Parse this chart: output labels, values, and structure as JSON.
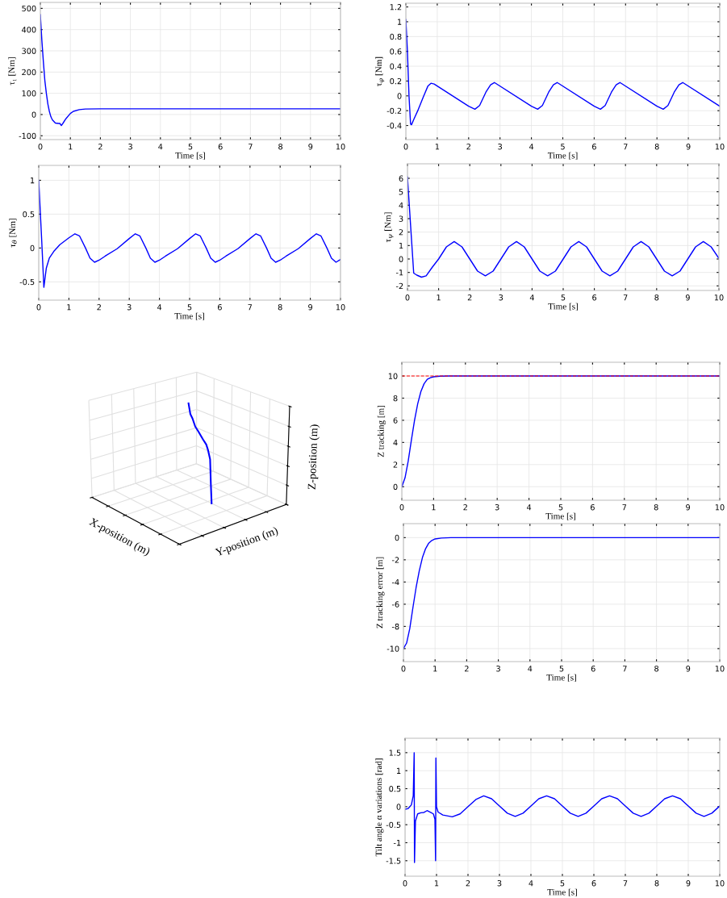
{
  "chart_data": [
    {
      "type": "line",
      "xlabel": "Time [s]",
      "ylabel": "τ₁ [Nm]",
      "xlim": [
        0,
        10
      ],
      "xticks": [
        0,
        1,
        2,
        3,
        4,
        5,
        6,
        7,
        8,
        9,
        10
      ],
      "ylim": [
        -118,
        528
      ],
      "yticks": [
        -100,
        0,
        100,
        200,
        300,
        400,
        500
      ],
      "grid": true,
      "series": [
        {
          "color": "#0000ff",
          "x": [
            0,
            0.05,
            0.1,
            0.15,
            0.2,
            0.25,
            0.3,
            0.35,
            0.4,
            0.5,
            0.6,
            0.65,
            0.7,
            0.75,
            0.85,
            1.0,
            1.1,
            1.3,
            1.5,
            2,
            10
          ],
          "values": [
            470,
            350,
            250,
            160,
            100,
            50,
            15,
            -10,
            -25,
            -40,
            -42,
            -42,
            -52,
            -42,
            -20,
            5,
            15,
            23,
            26,
            27,
            27
          ]
        }
      ]
    },
    {
      "type": "line",
      "xlabel": "Time [s]",
      "ylabel": "τ$_{φ}$ [Nm]",
      "xlim": [
        0,
        10
      ],
      "xticks": [
        0,
        1,
        2,
        3,
        4,
        5,
        6,
        7,
        8,
        9,
        10
      ],
      "ylim": [
        -0.59,
        1.25
      ],
      "yticks": [
        -0.4,
        -0.2,
        0,
        0.2,
        0.4,
        0.6,
        0.8,
        1,
        1.2
      ],
      "grid": true,
      "series": [
        {
          "color": "#0000ff",
          "x": [
            0,
            0.05,
            0.1,
            0.15,
            0.18,
            0.25,
            0.4,
            0.55,
            0.7,
            0.8,
            0.9,
            2.0,
            2.2,
            2.35,
            2.55,
            2.7,
            2.82,
            4.0,
            4.2,
            4.35,
            4.55,
            4.7,
            4.82,
            6.0,
            6.2,
            6.35,
            6.55,
            6.7,
            6.82,
            8.0,
            8.2,
            8.35,
            8.55,
            8.7,
            8.82,
            10
          ],
          "values": [
            1.03,
            0.6,
            0.0,
            -0.38,
            -0.39,
            -0.32,
            -0.18,
            -0.02,
            0.13,
            0.17,
            0.16,
            -0.14,
            -0.18,
            -0.13,
            0.05,
            0.15,
            0.18,
            -0.14,
            -0.18,
            -0.13,
            0.05,
            0.15,
            0.18,
            -0.14,
            -0.18,
            -0.13,
            0.05,
            0.15,
            0.18,
            -0.14,
            -0.18,
            -0.13,
            0.05,
            0.15,
            0.18,
            -0.14
          ]
        }
      ]
    },
    {
      "type": "line",
      "xlabel": "Time [s]",
      "ylabel": "τ$_{θ}$ [Nm]",
      "xlim": [
        0,
        10
      ],
      "xticks": [
        0,
        1,
        2,
        3,
        4,
        5,
        6,
        7,
        8,
        9,
        10
      ],
      "ylim": [
        -0.77,
        1.22
      ],
      "yticks": [
        -0.5,
        0,
        0.5,
        1
      ],
      "grid": true,
      "series": [
        {
          "color": "#0000ff",
          "x": [
            0,
            0.1,
            0.17,
            0.25,
            0.35,
            0.5,
            0.7,
            1.0,
            1.2,
            1.35,
            1.55,
            1.7,
            1.85,
            2.0,
            2.2,
            2.6,
            3.0,
            3.2,
            3.35,
            3.55,
            3.7,
            3.85,
            4.0,
            4.2,
            4.6,
            5.0,
            5.2,
            5.35,
            5.55,
            5.7,
            5.85,
            6.0,
            6.2,
            6.6,
            7.0,
            7.2,
            7.35,
            7.55,
            7.7,
            7.85,
            8.0,
            8.2,
            8.6,
            9.0,
            9.2,
            9.35,
            9.55,
            9.7,
            9.85,
            10
          ],
          "values": [
            1.0,
            0.1,
            -0.58,
            -0.3,
            -0.15,
            -0.05,
            0.05,
            0.15,
            0.21,
            0.18,
            0.0,
            -0.15,
            -0.21,
            -0.18,
            -0.12,
            -0.01,
            0.14,
            0.21,
            0.18,
            0.0,
            -0.15,
            -0.21,
            -0.18,
            -0.12,
            -0.01,
            0.14,
            0.21,
            0.18,
            0.0,
            -0.15,
            -0.21,
            -0.18,
            -0.12,
            -0.01,
            0.14,
            0.21,
            0.18,
            0.0,
            -0.15,
            -0.21,
            -0.18,
            -0.12,
            -0.01,
            0.14,
            0.21,
            0.18,
            0.0,
            -0.15,
            -0.21,
            -0.17
          ]
        }
      ]
    },
    {
      "type": "line",
      "xlabel": "Time [s]",
      "ylabel": "τ$_{ψ}$ [Nm]",
      "xlim": [
        0,
        10
      ],
      "xticks": [
        0,
        1,
        2,
        3,
        4,
        5,
        6,
        7,
        8,
        9,
        10
      ],
      "ylim": [
        -2.34,
        7.08
      ],
      "yticks": [
        -2,
        -1,
        0,
        1,
        2,
        3,
        4,
        5,
        6
      ],
      "grid": true,
      "series": [
        {
          "color": "#0000ff",
          "x": [
            0,
            0.1,
            0.2,
            0.3,
            0.45,
            0.6,
            0.8,
            1.0,
            1.25,
            1.5,
            1.75,
            2.0,
            2.25,
            2.5,
            2.75,
            3.0,
            3.25,
            3.5,
            3.75,
            4.0,
            4.25,
            4.5,
            4.75,
            5.0,
            5.25,
            5.5,
            5.75,
            6.0,
            6.25,
            6.5,
            6.75,
            7.0,
            7.25,
            7.5,
            7.75,
            8.0,
            8.25,
            8.5,
            8.75,
            9.0,
            9.25,
            9.5,
            9.75,
            10
          ],
          "values": [
            6.1,
            2.5,
            -1.05,
            -1.2,
            -1.35,
            -1.25,
            -0.6,
            0.0,
            0.9,
            1.3,
            0.9,
            0,
            -0.9,
            -1.25,
            -0.9,
            0,
            0.9,
            1.3,
            0.9,
            0,
            -0.9,
            -1.25,
            -0.9,
            0,
            0.9,
            1.3,
            0.9,
            0,
            -0.9,
            -1.25,
            -0.9,
            0,
            0.9,
            1.3,
            0.9,
            0,
            -0.9,
            -1.25,
            -0.9,
            0,
            0.9,
            1.3,
            0.9,
            0.05
          ]
        }
      ]
    },
    {
      "type": "other",
      "xlabel": "X-position (m)",
      "ylabel": "Z-position (m)",
      "annotations": [
        "Y-position (m)"
      ]
    },
    {
      "type": "line",
      "xlabel": "Time [s]",
      "ylabel": "Z tracking [m]",
      "xlim": [
        0,
        10
      ],
      "xticks": [
        0,
        1,
        2,
        3,
        4,
        5,
        6,
        7,
        8,
        9,
        10
      ],
      "ylim": [
        -1.22,
        11.24
      ],
      "yticks": [
        0,
        2,
        4,
        6,
        8,
        10
      ],
      "grid": true,
      "ref_lines": [
        {
          "axis": "y",
          "value": 10,
          "color": "#ff0000",
          "line_style": "dashed"
        }
      ],
      "series": [
        {
          "color": "#0000ff",
          "x": [
            0,
            0.1,
            0.2,
            0.3,
            0.4,
            0.5,
            0.6,
            0.7,
            0.8,
            0.9,
            1.0,
            1.2,
            1.5,
            10
          ],
          "values": [
            0,
            0.8,
            2.3,
            4.2,
            6.0,
            7.5,
            8.6,
            9.3,
            9.7,
            9.85,
            9.93,
            9.98,
            10,
            10
          ]
        }
      ]
    },
    {
      "type": "line",
      "xlabel": "Time [s]",
      "ylabel": "Z tracking error [m]",
      "xlim": [
        0,
        10
      ],
      "xticks": [
        0,
        1,
        2,
        3,
        4,
        5,
        6,
        7,
        8,
        9,
        10
      ],
      "ylim": [
        -11.17,
        1.26
      ],
      "yticks": [
        -10,
        -8,
        -6,
        -4,
        -2,
        0
      ],
      "grid": true,
      "series": [
        {
          "color": "#0000ff",
          "x": [
            0,
            0.1,
            0.2,
            0.3,
            0.4,
            0.5,
            0.6,
            0.7,
            0.8,
            0.9,
            1.0,
            1.2,
            1.5,
            10
          ],
          "values": [
            -10,
            -9.5,
            -8.2,
            -6.3,
            -4.5,
            -3.0,
            -1.8,
            -1.0,
            -0.5,
            -0.25,
            -0.12,
            -0.04,
            0,
            0
          ]
        }
      ]
    },
    {
      "type": "line",
      "xlabel": "Time [s]",
      "ylabel": "Tilt angle α variations [rad]",
      "xlim": [
        0,
        10
      ],
      "xticks": [
        0,
        1,
        2,
        3,
        4,
        5,
        6,
        7,
        8,
        9,
        10
      ],
      "ylim": [
        -1.93,
        1.9
      ],
      "yticks": [
        -1.5,
        -1,
        -0.5,
        0,
        0.5,
        1,
        1.5
      ],
      "grid": true,
      "series": [
        {
          "color": "#0000ff",
          "x": [
            0,
            0.1,
            0.2,
            0.26,
            0.29,
            0.3,
            0.33,
            0.4,
            0.5,
            0.6,
            0.7,
            0.8,
            0.9,
            0.95,
            0.97,
            0.98,
            1.0,
            1.05,
            1.2,
            1.5,
            1.75,
            2.0,
            2.25,
            2.5,
            2.75,
            3.0,
            3.25,
            3.5,
            3.75,
            4.0,
            4.25,
            4.5,
            4.75,
            5.0,
            5.25,
            5.5,
            5.75,
            6.0,
            6.25,
            6.5,
            6.75,
            7.0,
            7.25,
            7.5,
            7.75,
            8.0,
            8.25,
            8.5,
            8.75,
            9.0,
            9.25,
            9.5,
            9.75,
            10
          ],
          "values": [
            -0.07,
            -0.05,
            0.05,
            0.3,
            1.5,
            -1.55,
            -0.4,
            -0.2,
            -0.17,
            -0.16,
            -0.11,
            -0.15,
            -0.2,
            -0.35,
            -1.5,
            1.35,
            0.0,
            -0.15,
            -0.23,
            -0.28,
            -0.2,
            0.0,
            0.2,
            0.3,
            0.22,
            0.02,
            -0.18,
            -0.27,
            -0.18,
            0.02,
            0.22,
            0.3,
            0.22,
            0.02,
            -0.18,
            -0.27,
            -0.18,
            0.02,
            0.22,
            0.3,
            0.22,
            0.02,
            -0.18,
            -0.27,
            -0.18,
            0.02,
            0.22,
            0.3,
            0.22,
            0.02,
            -0.18,
            -0.27,
            -0.18,
            0.02
          ]
        }
      ]
    }
  ]
}
